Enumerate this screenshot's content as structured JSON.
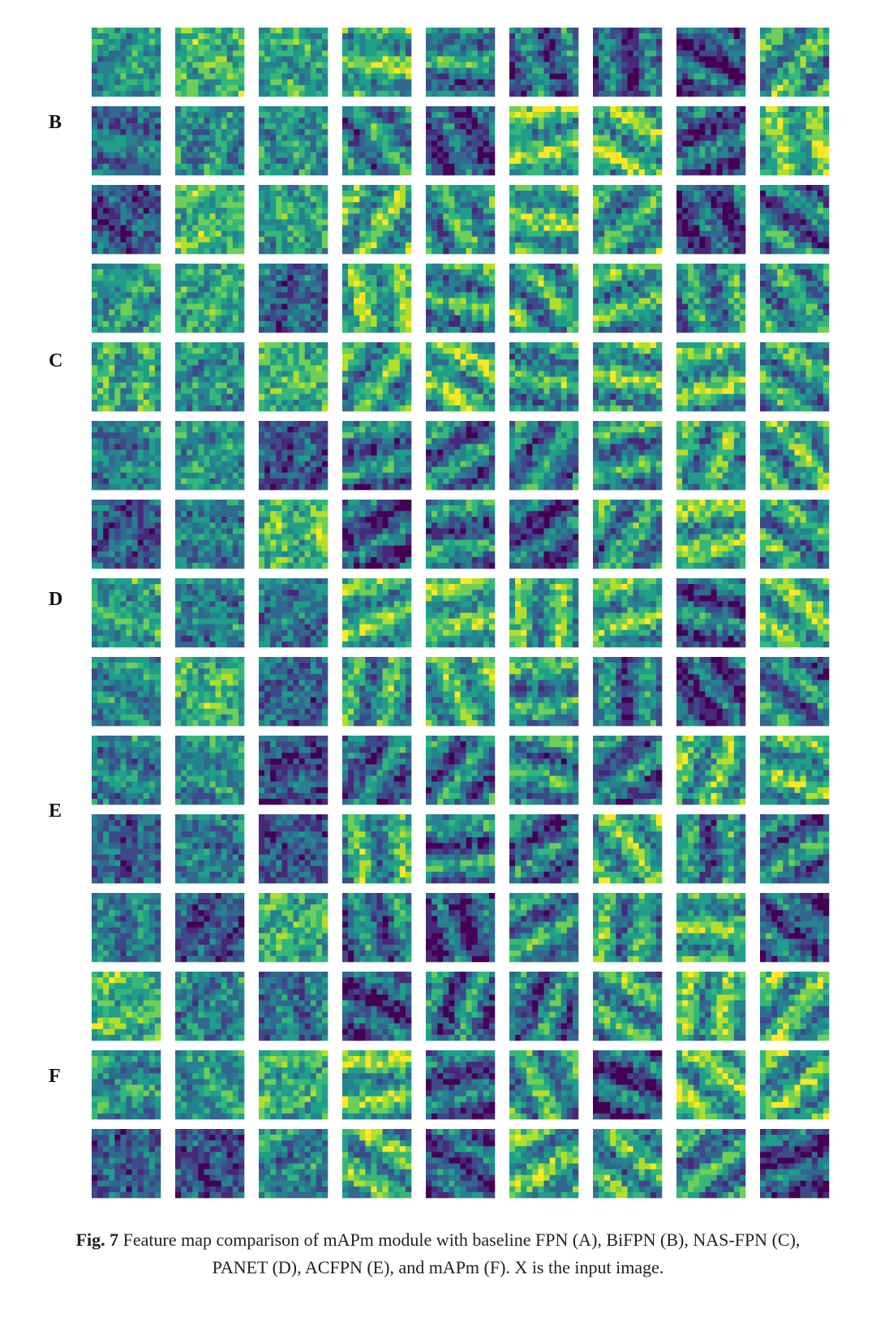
{
  "figure": {
    "row_labels": [
      "B",
      "C",
      "D",
      "E",
      "F"
    ],
    "caption": {
      "label": "Fig. 7",
      "text": "Feature map comparison of mAPm module with baseline FPN (A), BiFPN (B), NAS-FPN (C), PANET (D), ACFPN (E), and mAPm (F). X is the input image."
    }
  }
}
